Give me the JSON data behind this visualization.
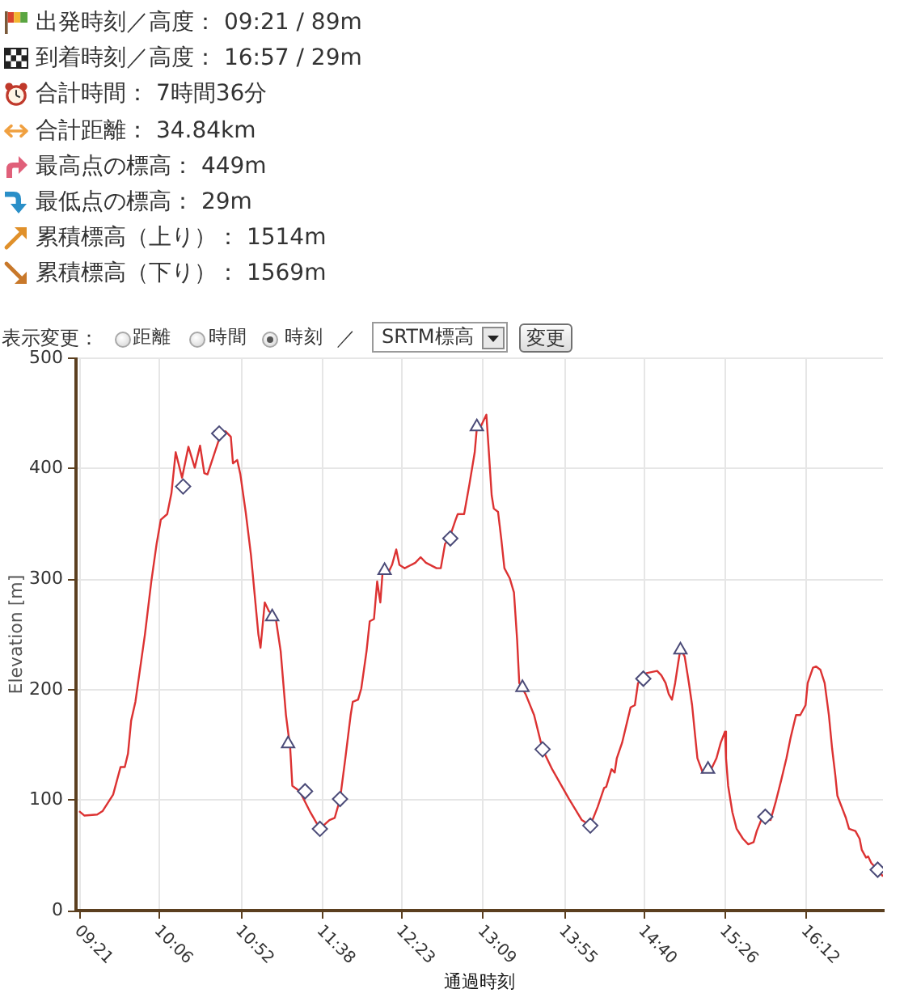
{
  "chart_data": {
    "type": "line",
    "xlabel": "通過時刻",
    "ylabel": "Elevation [m]",
    "annotations": [
      "出発時刻／高度： 09:21 / 89m",
      "到着時刻／高度： 16:57 / 29m",
      "合計時間： 7時間36分",
      "合計距離： 34.84km",
      "最高点の標高： 449m",
      "最低点の標高： 29m",
      "累積標高（上り）： 1514m",
      "累積標高（下り）： 1569m",
      "表示変更：",
      "距離",
      "時間",
      "時刻",
      "／",
      "SRTM標高",
      "変更"
    ],
    "xlim": [
      9.31,
      16.92
    ],
    "xticks": [
      {
        "value": 9.35,
        "label": "09:21"
      },
      {
        "value": 10.1,
        "label": "10:06"
      },
      {
        "value": 10.8667,
        "label": "10:52"
      },
      {
        "value": 11.6333,
        "label": "11:38"
      },
      {
        "value": 12.3833,
        "label": "12:23"
      },
      {
        "value": 13.15,
        "label": "13:09"
      },
      {
        "value": 13.9167,
        "label": "13:55"
      },
      {
        "value": 14.6667,
        "label": "14:40"
      },
      {
        "value": 15.4333,
        "label": "15:26"
      },
      {
        "value": 16.2,
        "label": "16:12"
      }
    ],
    "ylim": [
      0,
      500
    ],
    "yticks": [
      0,
      100,
      200,
      300,
      400,
      500
    ],
    "grid": true,
    "legend": false,
    "series": [
      {
        "type": "line",
        "color": "#dc3232",
        "marker": "none",
        "x": [
          9.34,
          9.39,
          9.51,
          9.56,
          9.66,
          9.73,
          9.77,
          9.8,
          9.83,
          9.87,
          9.96,
          10.02,
          10.07,
          10.11,
          10.17,
          10.21,
          10.25,
          10.31,
          10.37,
          10.43,
          10.48,
          10.52,
          10.55,
          10.66,
          10.72,
          10.77,
          10.79,
          10.83,
          10.86,
          10.91,
          10.96,
          11.03,
          11.05,
          11.09,
          11.13,
          11.19,
          11.24,
          11.29,
          11.33,
          11.35,
          11.42,
          11.52,
          11.61,
          11.7,
          11.75,
          11.8,
          11.85,
          11.9,
          11.92,
          11.97,
          12.0,
          12.05,
          12.08,
          12.12,
          12.15,
          12.18,
          12.2,
          12.25,
          12.29,
          12.33,
          12.36,
          12.41,
          12.51,
          12.56,
          12.61,
          12.71,
          12.75,
          12.79,
          12.83,
          12.89,
          12.91,
          12.97,
          13.02,
          13.07,
          13.09,
          13.13,
          13.18,
          13.2,
          13.23,
          13.25,
          13.29,
          13.32,
          13.35,
          13.4,
          13.44,
          13.47,
          13.49,
          13.55,
          13.63,
          13.71,
          13.8,
          13.96,
          14.08,
          14.16,
          14.23,
          14.29,
          14.31,
          14.36,
          14.39,
          14.41,
          14.46,
          14.51,
          14.54,
          14.58,
          14.61,
          14.66,
          14.69,
          14.79,
          14.83,
          14.87,
          14.9,
          14.93,
          14.96,
          14.99,
          15.01,
          15.05,
          15.09,
          15.12,
          15.15,
          15.17,
          15.22,
          15.27,
          15.3,
          15.35,
          15.39,
          15.43,
          15.44,
          15.46,
          15.5,
          15.54,
          15.6,
          15.65,
          15.7,
          15.73,
          15.78,
          15.81,
          15.86,
          15.91,
          15.96,
          16.01,
          16.05,
          16.1,
          16.14,
          16.19,
          16.21,
          16.26,
          16.29,
          16.33,
          16.37,
          16.41,
          16.44,
          16.47,
          16.49,
          16.53,
          16.57,
          16.6,
          16.66,
          16.7,
          16.72,
          16.76,
          16.78,
          16.81,
          16.87,
          16.92
        ],
        "values": [
          90,
          86,
          87,
          90,
          105,
          130,
          130,
          142,
          172,
          189,
          250,
          298,
          332,
          354,
          359,
          378,
          415,
          392,
          420,
          401,
          421,
          396,
          395,
          427,
          434,
          429,
          405,
          408,
          395,
          361,
          322,
          250,
          238,
          279,
          271,
          267,
          235,
          177,
          147,
          113,
          108,
          89,
          74,
          82,
          84,
          101,
          138,
          177,
          189,
          191,
          201,
          235,
          262,
          264,
          298,
          279,
          305,
          305,
          313,
          327,
          313,
          310,
          315,
          320,
          315,
          310,
          310,
          332,
          337,
          354,
          359,
          359,
          386,
          415,
          437,
          439,
          449,
          420,
          376,
          364,
          361,
          337,
          310,
          301,
          288,
          245,
          206,
          196,
          177,
          146,
          128,
          101,
          82,
          77,
          94,
          111,
          112,
          128,
          125,
          138,
          152,
          172,
          184,
          186,
          206,
          210,
          215,
          217,
          213,
          206,
          196,
          191,
          206,
          225,
          237,
          230,
          206,
          186,
          157,
          138,
          125,
          128,
          128,
          138,
          152,
          162,
          138,
          113,
          89,
          74,
          65,
          60,
          62,
          72,
          84,
          85,
          82,
          99,
          118,
          138,
          157,
          177,
          177,
          186,
          206,
          220,
          221,
          218,
          206,
          177,
          147,
          123,
          104,
          94,
          84,
          74,
          72,
          65,
          55,
          48,
          49,
          43,
          37,
          31
        ]
      },
      {
        "type": "scatter",
        "color": "#4b4b78",
        "marker": "diamond",
        "x": [
          10.32,
          10.66,
          11.47,
          11.61,
          11.8,
          12.84,
          13.71,
          14.16,
          14.66,
          15.81,
          16.87
        ],
        "values": [
          384,
          432,
          108,
          74,
          101,
          337,
          146,
          77,
          210,
          85,
          37
        ]
      },
      {
        "type": "scatter",
        "color": "#4b4b78",
        "marker": "triangle",
        "x": [
          11.16,
          11.31,
          12.22,
          13.09,
          13.52,
          15.01,
          15.27
        ],
        "values": [
          266,
          151,
          308,
          438,
          202,
          236,
          128
        ]
      }
    ]
  }
}
